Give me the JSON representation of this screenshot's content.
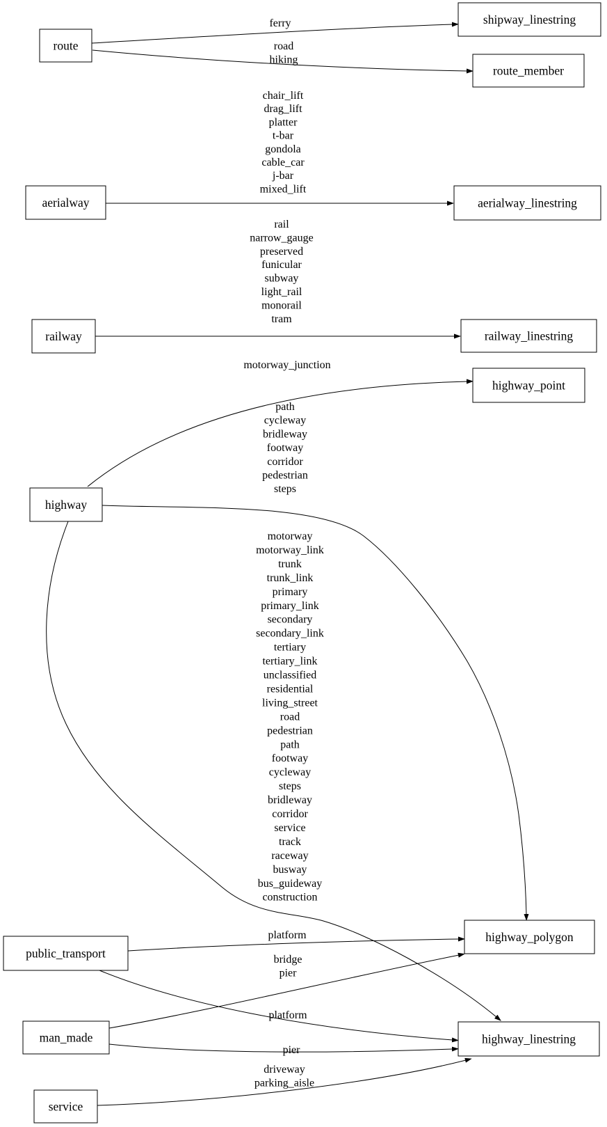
{
  "diagram": {
    "type": "graphviz-digraph",
    "background": "#ffffff",
    "colors": {
      "node_border": "#000000",
      "edge": "#000000",
      "text": "#000000",
      "node_fill": "#ffffff"
    },
    "nodes": [
      {
        "id": "route",
        "label": "route"
      },
      {
        "id": "aerialway",
        "label": "aerialway"
      },
      {
        "id": "railway",
        "label": "railway"
      },
      {
        "id": "highway",
        "label": "highway"
      },
      {
        "id": "public_transport",
        "label": "public_transport"
      },
      {
        "id": "man_made",
        "label": "man_made"
      },
      {
        "id": "service",
        "label": "service"
      },
      {
        "id": "shipway_linestring",
        "label": "shipway_linestring"
      },
      {
        "id": "route_member",
        "label": "route_member"
      },
      {
        "id": "aerialway_linestring",
        "label": "aerialway_linestring"
      },
      {
        "id": "railway_linestring",
        "label": "railway_linestring"
      },
      {
        "id": "highway_point",
        "label": "highway_point"
      },
      {
        "id": "highway_polygon",
        "label": "highway_polygon"
      },
      {
        "id": "highway_linestring",
        "label": "highway_linestring"
      }
    ],
    "edges": [
      {
        "from": "route",
        "to": "shipway_linestring",
        "labels": [
          "ferry"
        ]
      },
      {
        "from": "route",
        "to": "route_member",
        "labels": [
          "road",
          "hiking"
        ]
      },
      {
        "from": "aerialway",
        "to": "aerialway_linestring",
        "labels": [
          "chair_lift",
          "drag_lift",
          "platter",
          "t-bar",
          "gondola",
          "cable_car",
          "j-bar",
          "mixed_lift"
        ]
      },
      {
        "from": "railway",
        "to": "railway_linestring",
        "labels": [
          "rail",
          "narrow_gauge",
          "preserved",
          "funicular",
          "subway",
          "light_rail",
          "monorail",
          "tram"
        ]
      },
      {
        "from": "highway",
        "to": "highway_point",
        "labels": [
          "motorway_junction"
        ]
      },
      {
        "from": "highway",
        "to": "highway_polygon",
        "labels": [
          "path",
          "cycleway",
          "bridleway",
          "footway",
          "corridor",
          "pedestrian",
          "steps"
        ]
      },
      {
        "from": "highway",
        "to": "highway_linestring",
        "labels": [
          "motorway",
          "motorway_link",
          "trunk",
          "trunk_link",
          "primary",
          "primary_link",
          "secondary",
          "secondary_link",
          "tertiary",
          "tertiary_link",
          "unclassified",
          "residential",
          "living_street",
          "road",
          "pedestrian",
          "path",
          "footway",
          "cycleway",
          "steps",
          "bridleway",
          "corridor",
          "service",
          "track",
          "raceway",
          "busway",
          "bus_guideway",
          "construction"
        ]
      },
      {
        "from": "public_transport",
        "to": "highway_polygon",
        "labels": [
          "platform"
        ]
      },
      {
        "from": "public_transport",
        "to": "highway_linestring",
        "labels": [
          "platform"
        ]
      },
      {
        "from": "man_made",
        "to": "highway_polygon",
        "labels": [
          "bridge",
          "pier"
        ]
      },
      {
        "from": "man_made",
        "to": "highway_linestring",
        "labels": [
          "pier"
        ]
      },
      {
        "from": "service",
        "to": "highway_linestring",
        "labels": [
          "driveway",
          "parking_aisle"
        ]
      }
    ]
  }
}
